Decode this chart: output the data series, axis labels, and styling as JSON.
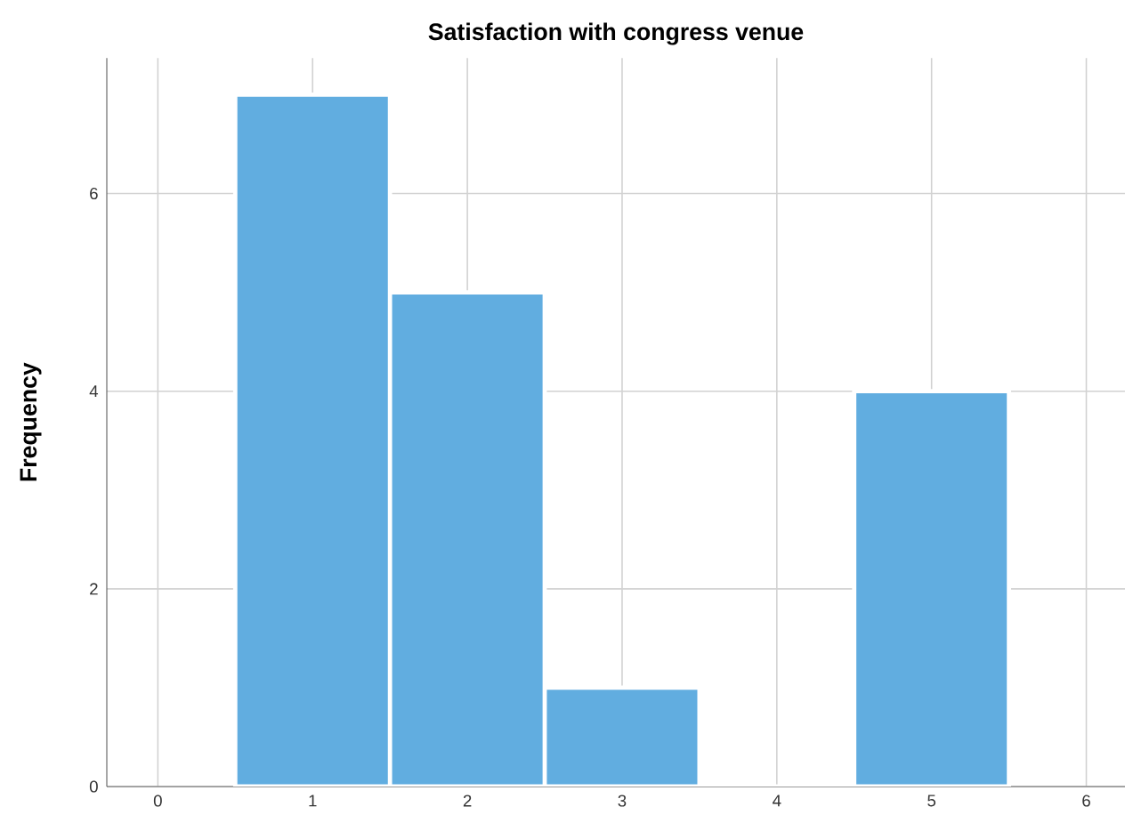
{
  "chart_data": {
    "type": "histogram",
    "title": "Satisfaction with congress venue",
    "ylabel": "Frequency",
    "bins": [
      0.5,
      1.5,
      2.5,
      3.5,
      4.5,
      5.5
    ],
    "values": [
      7,
      5,
      1,
      0,
      4
    ],
    "color": "#61ade0",
    "xlim": [
      -0.33,
      6.25
    ],
    "ylim": [
      0,
      7.37
    ],
    "xticks": [
      0,
      1,
      2,
      3,
      4,
      5,
      6
    ],
    "yticks": [
      0,
      2,
      4,
      6
    ],
    "grid": true
  }
}
